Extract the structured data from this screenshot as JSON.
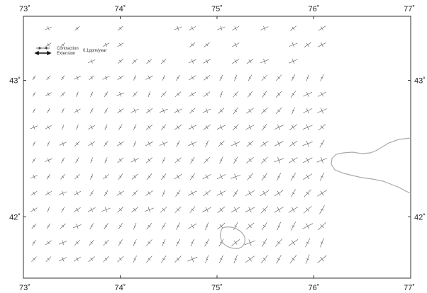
{
  "map": {
    "lon_ticks": [
      {
        "value": 73,
        "label": "73˚"
      },
      {
        "value": 74,
        "label": "74˚"
      },
      {
        "value": 75,
        "label": "75˚"
      },
      {
        "value": 76,
        "label": "76˚"
      },
      {
        "value": 77,
        "label": "77˚"
      }
    ],
    "lat_ticks": [
      {
        "value": 43,
        "label": "43˚"
      },
      {
        "value": 42,
        "label": "42˚"
      }
    ],
    "extent": {
      "lon": [
        73,
        77
      ],
      "lat": [
        41.55,
        43.47
      ]
    },
    "legend": {
      "contraction_label": "Contraction",
      "extension_label": "Extension",
      "scale_label": "0.1ppm/year"
    },
    "colors": {
      "frame": "#333333",
      "symbols": "#555555",
      "coast": "#aaaaaa"
    }
  }
}
